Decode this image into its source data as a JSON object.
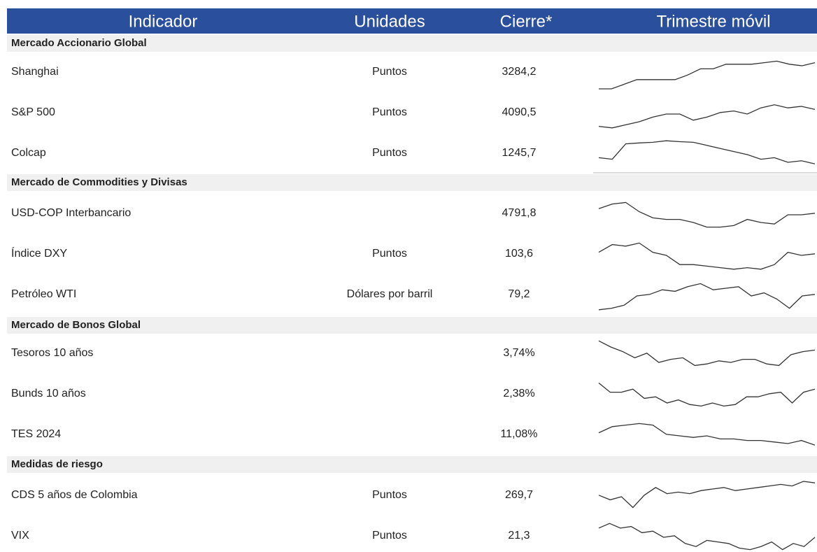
{
  "header": {
    "columns": [
      "Indicador",
      "Unidades",
      "Cierre*",
      "Trimestre móvil"
    ]
  },
  "sections": [
    {
      "title": "Mercado Accionario Global",
      "rows": [
        {
          "indicator": "Shanghai",
          "units": "Puntos",
          "close": "3284,2",
          "trend": [
            0,
            0,
            15,
            30,
            30,
            30,
            30,
            45,
            65,
            65,
            80,
            80,
            80,
            85,
            90,
            80,
            75,
            85
          ]
        },
        {
          "indicator": "S&P 500",
          "units": "Puntos",
          "close": "4090,5",
          "trend": [
            10,
            5,
            15,
            25,
            40,
            50,
            50,
            30,
            40,
            55,
            60,
            50,
            70,
            80,
            70,
            75,
            65
          ]
        },
        {
          "indicator": "Colcap",
          "units": "Puntos",
          "close": "1245,7",
          "trend": [
            40,
            35,
            85,
            88,
            90,
            95,
            92,
            90,
            80,
            70,
            60,
            50,
            35,
            40,
            25,
            30,
            20
          ]
        }
      ]
    },
    {
      "title": "Mercado de Commodities y Divisas",
      "rows": [
        {
          "indicator": "USD-COP Interbancario",
          "close": "4791,8",
          "trend": [
            70,
            85,
            90,
            60,
            40,
            35,
            35,
            25,
            10,
            10,
            15,
            35,
            25,
            20,
            50,
            50,
            55
          ]
        },
        {
          "indicator": "Índice DXY",
          "units": "Puntos",
          "close": "103,6",
          "trend": [
            60,
            85,
            80,
            90,
            60,
            50,
            20,
            20,
            15,
            10,
            5,
            10,
            5,
            20,
            60,
            50,
            55
          ]
        },
        {
          "indicator": "Petróleo WTI",
          "units": "Dólares por barril",
          "close": "79,2",
          "trend": [
            5,
            10,
            20,
            50,
            55,
            70,
            65,
            80,
            90,
            70,
            75,
            80,
            50,
            60,
            40,
            10,
            50,
            55
          ]
        }
      ]
    },
    {
      "title": "Mercado de Bonos Global",
      "rows": [
        {
          "indicator": "Tesoros 10 años",
          "close": "3,74%",
          "trend": [
            95,
            75,
            60,
            40,
            55,
            25,
            35,
            40,
            15,
            20,
            30,
            25,
            35,
            35,
            20,
            15,
            50,
            60,
            65
          ]
        },
        {
          "indicator": "Bunds 10 años",
          "close": "2,38%",
          "trend": [
            90,
            60,
            60,
            70,
            40,
            45,
            25,
            35,
            20,
            15,
            25,
            15,
            20,
            45,
            45,
            55,
            60,
            25,
            60,
            70
          ]
        },
        {
          "indicator": "TES 2024",
          "close": "11,08%",
          "trend": [
            60,
            80,
            85,
            90,
            85,
            55,
            50,
            45,
            50,
            40,
            40,
            35,
            35,
            30,
            25,
            35,
            20
          ]
        }
      ]
    },
    {
      "title": "Medidas de riesgo",
      "rows": [
        {
          "indicator": "CDS 5 años de Colombia",
          "units": "Puntos",
          "close": "269,7",
          "trend": [
            55,
            40,
            50,
            15,
            55,
            80,
            60,
            65,
            60,
            70,
            75,
            80,
            70,
            75,
            80,
            85,
            90,
            85,
            100,
            95
          ]
        },
        {
          "indicator": "VIX",
          "units": "Puntos",
          "close": "21,3",
          "trend": [
            80,
            95,
            80,
            85,
            65,
            70,
            50,
            55,
            30,
            20,
            40,
            35,
            30,
            15,
            10,
            20,
            35,
            10,
            30,
            20,
            50
          ]
        }
      ]
    }
  ]
}
